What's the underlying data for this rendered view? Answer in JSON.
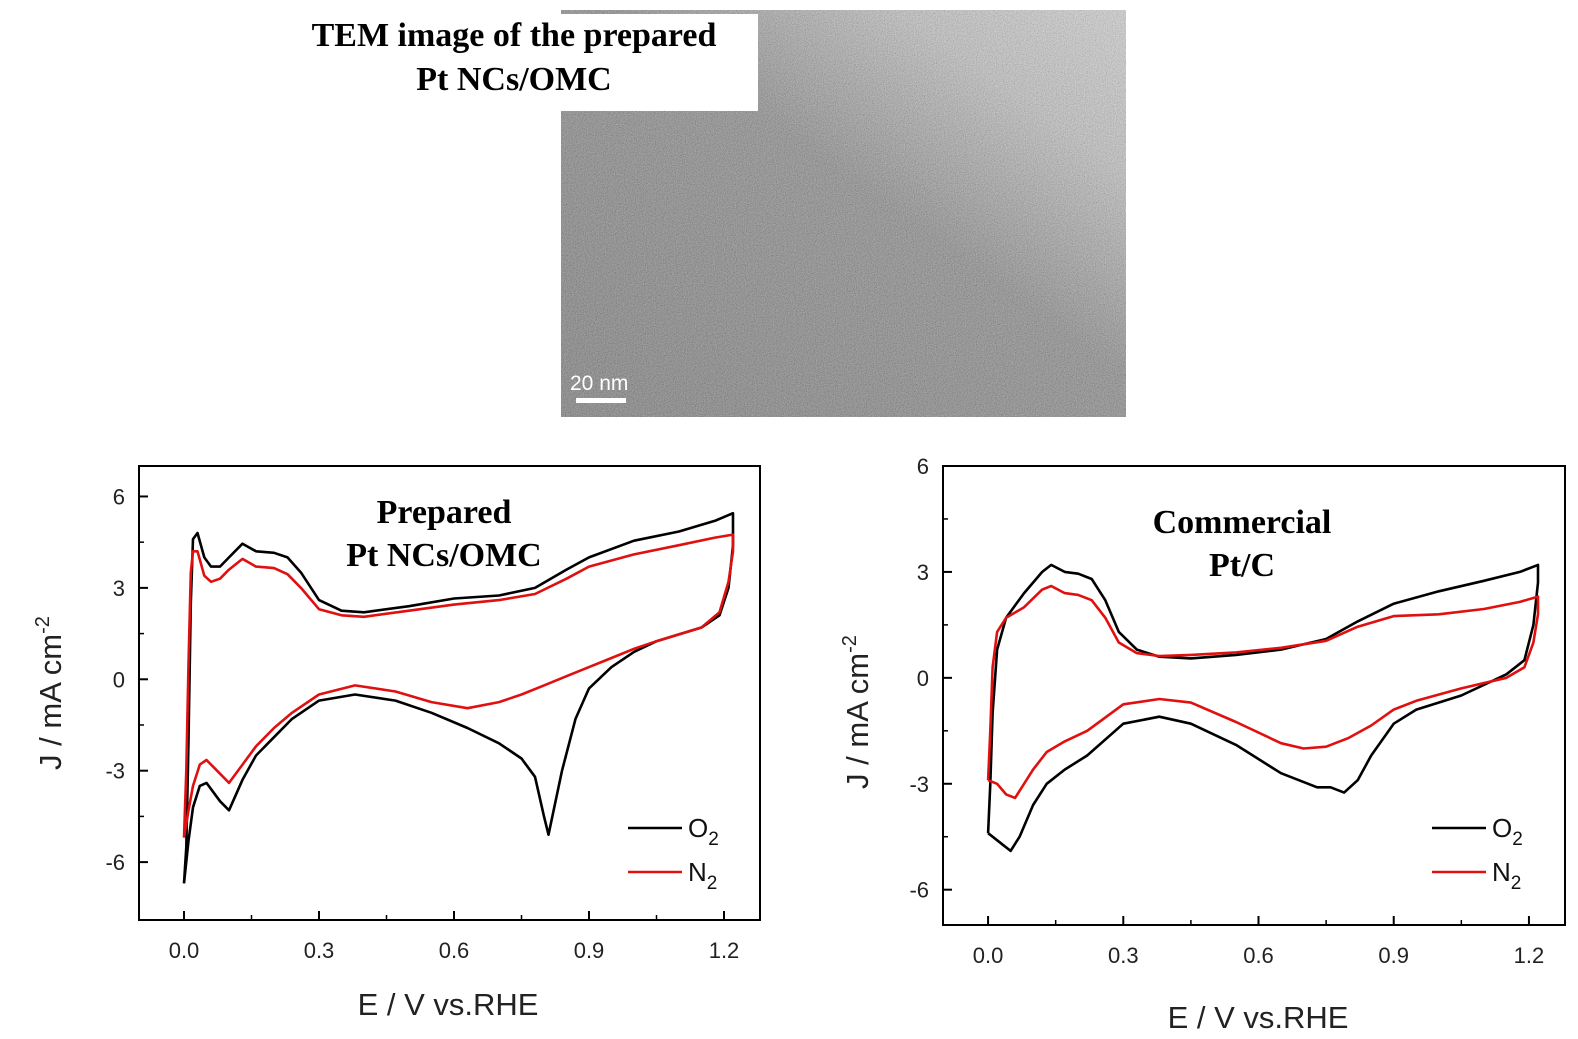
{
  "tem": {
    "caption_line1": "TEM image of the prepared",
    "caption_line2": "Pt NCs/OMC",
    "scale_label": "20 nm"
  },
  "chart_data": [
    {
      "type": "line",
      "title_line1": "Prepared",
      "title_line2": "Pt NCs/OMC",
      "xlabel": "E / V vs.RHE",
      "ylabel": "J / mA cm",
      "ylabel_sup": "-2",
      "xlim": [
        -0.1,
        1.28
      ],
      "ylim": [
        -7.9,
        7.0
      ],
      "xticks": [
        0.0,
        0.3,
        0.6,
        0.9,
        1.2
      ],
      "xtick_labels": [
        "0.0",
        "0.3",
        "0.6",
        "0.9",
        "1.2"
      ],
      "yticks": [
        6,
        3,
        0,
        -3,
        -6
      ],
      "ytick_labels": [
        "6",
        "3",
        "0",
        "-3",
        "-6"
      ],
      "legend_position": "bottom-right",
      "series": [
        {
          "name": "O2",
          "label_main": "O",
          "label_sub": "2",
          "color": "#000000",
          "points": [
            [
              0.0,
              -6.7
            ],
            [
              0.005,
              -5.5
            ],
            [
              0.01,
              -2.0
            ],
            [
              0.015,
              2.5
            ],
            [
              0.02,
              4.6
            ],
            [
              0.03,
              4.8
            ],
            [
              0.045,
              4.0
            ],
            [
              0.06,
              3.7
            ],
            [
              0.08,
              3.7
            ],
            [
              0.1,
              4.0
            ],
            [
              0.13,
              4.45
            ],
            [
              0.16,
              4.2
            ],
            [
              0.2,
              4.15
            ],
            [
              0.23,
              4.0
            ],
            [
              0.26,
              3.5
            ],
            [
              0.3,
              2.6
            ],
            [
              0.35,
              2.25
            ],
            [
              0.4,
              2.2
            ],
            [
              0.5,
              2.4
            ],
            [
              0.6,
              2.65
            ],
            [
              0.7,
              2.75
            ],
            [
              0.78,
              3.0
            ],
            [
              0.85,
              3.6
            ],
            [
              0.9,
              4.0
            ],
            [
              1.0,
              4.55
            ],
            [
              1.1,
              4.85
            ],
            [
              1.18,
              5.2
            ],
            [
              1.22,
              5.45
            ],
            [
              1.22,
              4.4
            ],
            [
              1.21,
              3.0
            ],
            [
              1.19,
              2.1
            ],
            [
              1.15,
              1.7
            ],
            [
              1.05,
              1.25
            ],
            [
              1.0,
              0.9
            ],
            [
              0.95,
              0.4
            ],
            [
              0.9,
              -0.3
            ],
            [
              0.87,
              -1.3
            ],
            [
              0.84,
              -3.0
            ],
            [
              0.82,
              -4.4
            ],
            [
              0.81,
              -5.1
            ],
            [
              0.8,
              -4.5
            ],
            [
              0.78,
              -3.2
            ],
            [
              0.75,
              -2.6
            ],
            [
              0.7,
              -2.1
            ],
            [
              0.63,
              -1.6
            ],
            [
              0.55,
              -1.1
            ],
            [
              0.47,
              -0.7
            ],
            [
              0.38,
              -0.5
            ],
            [
              0.3,
              -0.7
            ],
            [
              0.24,
              -1.3
            ],
            [
              0.2,
              -1.9
            ],
            [
              0.16,
              -2.5
            ],
            [
              0.13,
              -3.3
            ],
            [
              0.1,
              -4.3
            ],
            [
              0.08,
              -4.0
            ],
            [
              0.05,
              -3.4
            ],
            [
              0.035,
              -3.5
            ],
            [
              0.02,
              -4.2
            ],
            [
              0.01,
              -5.3
            ],
            [
              0.0,
              -6.7
            ]
          ]
        },
        {
          "name": "N2",
          "label_main": "N",
          "label_sub": "2",
          "color": "#e01010",
          "points": [
            [
              0.0,
              -5.2
            ],
            [
              0.005,
              -3.0
            ],
            [
              0.01,
              0.5
            ],
            [
              0.015,
              3.5
            ],
            [
              0.02,
              4.2
            ],
            [
              0.03,
              4.2
            ],
            [
              0.045,
              3.4
            ],
            [
              0.06,
              3.2
            ],
            [
              0.08,
              3.3
            ],
            [
              0.1,
              3.6
            ],
            [
              0.13,
              3.95
            ],
            [
              0.16,
              3.7
            ],
            [
              0.2,
              3.65
            ],
            [
              0.23,
              3.45
            ],
            [
              0.26,
              3.0
            ],
            [
              0.3,
              2.3
            ],
            [
              0.35,
              2.1
            ],
            [
              0.4,
              2.05
            ],
            [
              0.5,
              2.25
            ],
            [
              0.6,
              2.45
            ],
            [
              0.7,
              2.6
            ],
            [
              0.78,
              2.8
            ],
            [
              0.85,
              3.3
            ],
            [
              0.9,
              3.7
            ],
            [
              1.0,
              4.1
            ],
            [
              1.1,
              4.4
            ],
            [
              1.18,
              4.65
            ],
            [
              1.22,
              4.75
            ],
            [
              1.22,
              4.2
            ],
            [
              1.21,
              3.2
            ],
            [
              1.19,
              2.2
            ],
            [
              1.15,
              1.7
            ],
            [
              1.05,
              1.25
            ],
            [
              1.0,
              1.0
            ],
            [
              0.95,
              0.7
            ],
            [
              0.9,
              0.4
            ],
            [
              0.85,
              0.1
            ],
            [
              0.8,
              -0.2
            ],
            [
              0.75,
              -0.5
            ],
            [
              0.7,
              -0.75
            ],
            [
              0.63,
              -0.95
            ],
            [
              0.55,
              -0.75
            ],
            [
              0.47,
              -0.4
            ],
            [
              0.38,
              -0.2
            ],
            [
              0.3,
              -0.5
            ],
            [
              0.24,
              -1.1
            ],
            [
              0.2,
              -1.6
            ],
            [
              0.16,
              -2.2
            ],
            [
              0.13,
              -2.8
            ],
            [
              0.1,
              -3.4
            ],
            [
              0.08,
              -3.1
            ],
            [
              0.05,
              -2.65
            ],
            [
              0.035,
              -2.8
            ],
            [
              0.02,
              -3.5
            ],
            [
              0.01,
              -4.3
            ],
            [
              0.0,
              -5.2
            ]
          ]
        }
      ]
    },
    {
      "type": "line",
      "title_line1": "Commercial",
      "title_line2": "Pt/C",
      "xlabel": "E / V vs.RHE",
      "ylabel": "J / mA cm",
      "ylabel_sup": "-2",
      "xlim": [
        -0.1,
        1.28
      ],
      "ylim": [
        -7.0,
        6.0
      ],
      "xticks": [
        0.0,
        0.3,
        0.6,
        0.9,
        1.2
      ],
      "xtick_labels": [
        "0.0",
        "0.3",
        "0.6",
        "0.9",
        "1.2"
      ],
      "yticks": [
        6,
        3,
        0,
        -3,
        -6
      ],
      "ytick_labels": [
        "6",
        "3",
        "0",
        "-3",
        "-6"
      ],
      "legend_position": "bottom-right",
      "series": [
        {
          "name": "O2",
          "label_main": "O",
          "label_sub": "2",
          "color": "#000000",
          "points": [
            [
              0.0,
              -4.4
            ],
            [
              0.005,
              -3.0
            ],
            [
              0.01,
              -1.0
            ],
            [
              0.02,
              0.8
            ],
            [
              0.04,
              1.7
            ],
            [
              0.08,
              2.4
            ],
            [
              0.12,
              3.0
            ],
            [
              0.14,
              3.2
            ],
            [
              0.17,
              3.0
            ],
            [
              0.2,
              2.95
            ],
            [
              0.23,
              2.8
            ],
            [
              0.26,
              2.2
            ],
            [
              0.29,
              1.3
            ],
            [
              0.33,
              0.8
            ],
            [
              0.38,
              0.6
            ],
            [
              0.45,
              0.55
            ],
            [
              0.55,
              0.65
            ],
            [
              0.65,
              0.8
            ],
            [
              0.75,
              1.1
            ],
            [
              0.82,
              1.6
            ],
            [
              0.9,
              2.1
            ],
            [
              1.0,
              2.45
            ],
            [
              1.1,
              2.75
            ],
            [
              1.18,
              3.0
            ],
            [
              1.22,
              3.2
            ],
            [
              1.22,
              2.7
            ],
            [
              1.21,
              1.5
            ],
            [
              1.19,
              0.5
            ],
            [
              1.15,
              0.1
            ],
            [
              1.05,
              -0.5
            ],
            [
              0.95,
              -0.9
            ],
            [
              0.9,
              -1.3
            ],
            [
              0.85,
              -2.2
            ],
            [
              0.82,
              -2.9
            ],
            [
              0.79,
              -3.25
            ],
            [
              0.76,
              -3.1
            ],
            [
              0.73,
              -3.1
            ],
            [
              0.65,
              -2.7
            ],
            [
              0.55,
              -1.9
            ],
            [
              0.45,
              -1.3
            ],
            [
              0.38,
              -1.1
            ],
            [
              0.3,
              -1.3
            ],
            [
              0.22,
              -2.2
            ],
            [
              0.17,
              -2.6
            ],
            [
              0.13,
              -3.0
            ],
            [
              0.1,
              -3.6
            ],
            [
              0.07,
              -4.5
            ],
            [
              0.05,
              -4.9
            ],
            [
              0.03,
              -4.7
            ],
            [
              0.01,
              -4.5
            ],
            [
              0.0,
              -4.4
            ]
          ]
        },
        {
          "name": "N2",
          "label_main": "N",
          "label_sub": "2",
          "color": "#e01010",
          "points": [
            [
              0.0,
              -2.9
            ],
            [
              0.005,
              -1.5
            ],
            [
              0.01,
              0.3
            ],
            [
              0.02,
              1.3
            ],
            [
              0.04,
              1.7
            ],
            [
              0.08,
              2.0
            ],
            [
              0.12,
              2.5
            ],
            [
              0.14,
              2.6
            ],
            [
              0.17,
              2.4
            ],
            [
              0.2,
              2.35
            ],
            [
              0.23,
              2.2
            ],
            [
              0.26,
              1.7
            ],
            [
              0.29,
              1.0
            ],
            [
              0.33,
              0.7
            ],
            [
              0.38,
              0.62
            ],
            [
              0.45,
              0.65
            ],
            [
              0.55,
              0.72
            ],
            [
              0.65,
              0.85
            ],
            [
              0.75,
              1.05
            ],
            [
              0.82,
              1.45
            ],
            [
              0.9,
              1.75
            ],
            [
              1.0,
              1.8
            ],
            [
              1.1,
              1.95
            ],
            [
              1.18,
              2.15
            ],
            [
              1.22,
              2.3
            ],
            [
              1.22,
              1.8
            ],
            [
              1.21,
              1.0
            ],
            [
              1.19,
              0.3
            ],
            [
              1.15,
              0.0
            ],
            [
              1.05,
              -0.3
            ],
            [
              0.95,
              -0.65
            ],
            [
              0.9,
              -0.9
            ],
            [
              0.85,
              -1.35
            ],
            [
              0.8,
              -1.7
            ],
            [
              0.75,
              -1.95
            ],
            [
              0.7,
              -2.0
            ],
            [
              0.65,
              -1.85
            ],
            [
              0.55,
              -1.25
            ],
            [
              0.45,
              -0.7
            ],
            [
              0.38,
              -0.6
            ],
            [
              0.3,
              -0.75
            ],
            [
              0.22,
              -1.5
            ],
            [
              0.17,
              -1.8
            ],
            [
              0.13,
              -2.1
            ],
            [
              0.1,
              -2.6
            ],
            [
              0.07,
              -3.2
            ],
            [
              0.06,
              -3.4
            ],
            [
              0.04,
              -3.3
            ],
            [
              0.02,
              -3.0
            ],
            [
              0.0,
              -2.9
            ]
          ]
        }
      ]
    }
  ]
}
